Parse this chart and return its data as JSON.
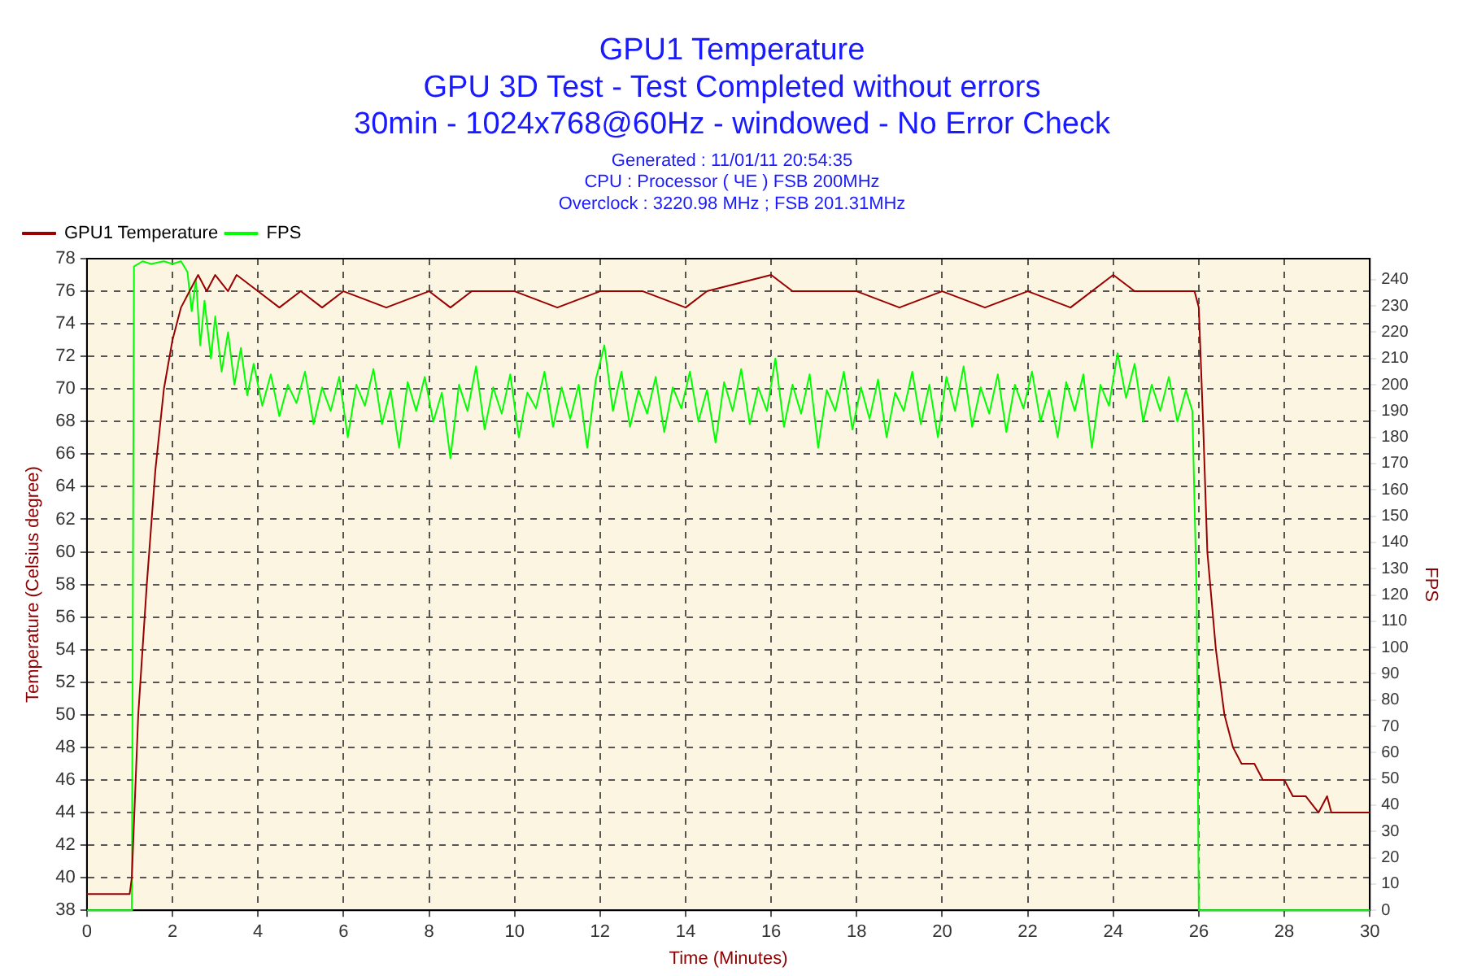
{
  "chart_data": {
    "type": "line",
    "title": "GPU1 Temperature",
    "subtitle": "GPU 3D Test - Test Completed without errors\n30min - 1024x768@60Hz - windowed - No Error Check",
    "annotations": [
      "Generated : 11/01/11 20:54:35",
      "CPU : Processor ( ЧЕ ) FSB 200MHz",
      "Overclock : 3220.98 MHz ; FSB 201.31MHz"
    ],
    "xlabel": "Time (Minutes)",
    "ylabel": "Temperature (Celsius degree)",
    "y2label": "FPS",
    "xlim": [
      0,
      30
    ],
    "xticks": [
      0,
      2,
      4,
      6,
      8,
      10,
      12,
      14,
      16,
      18,
      20,
      22,
      24,
      26,
      28,
      30
    ],
    "ylim": [
      38,
      78
    ],
    "yticks": [
      38,
      40,
      42,
      44,
      46,
      48,
      50,
      52,
      54,
      56,
      58,
      60,
      62,
      64,
      66,
      68,
      70,
      72,
      74,
      76,
      78
    ],
    "y2lim": [
      0,
      248
    ],
    "y2ticks": [
      0,
      10,
      20,
      30,
      40,
      50,
      60,
      70,
      80,
      90,
      100,
      110,
      120,
      130,
      140,
      150,
      160,
      170,
      180,
      190,
      200,
      210,
      220,
      230,
      240
    ],
    "grid": true,
    "legend": "top left",
    "marker": "none",
    "line_style": "solid",
    "series": [
      {
        "name": "FPS",
        "color": "#00ff00",
        "axis": "y2",
        "x": [
          0,
          1.05,
          1.1,
          1.3,
          1.5,
          1.8,
          2.0,
          2.2,
          2.35,
          2.45,
          2.55,
          2.65,
          2.75,
          2.9,
          3.0,
          3.15,
          3.3,
          3.45,
          3.6,
          3.75,
          3.9,
          4.1,
          4.3,
          4.5,
          4.7,
          4.9,
          5.1,
          5.3,
          5.5,
          5.7,
          5.9,
          6.1,
          6.3,
          6.5,
          6.7,
          6.9,
          7.1,
          7.3,
          7.5,
          7.7,
          7.9,
          8.1,
          8.3,
          8.5,
          8.7,
          8.9,
          9.1,
          9.3,
          9.5,
          9.7,
          9.9,
          10.1,
          10.3,
          10.5,
          10.7,
          10.9,
          11.1,
          11.3,
          11.5,
          11.7,
          11.9,
          12.1,
          12.3,
          12.5,
          12.7,
          12.9,
          13.1,
          13.3,
          13.5,
          13.7,
          13.9,
          14.1,
          14.3,
          14.5,
          14.7,
          14.9,
          15.1,
          15.3,
          15.5,
          15.7,
          15.9,
          16.1,
          16.3,
          16.5,
          16.7,
          16.9,
          17.1,
          17.3,
          17.5,
          17.7,
          17.9,
          18.1,
          18.3,
          18.5,
          18.7,
          18.9,
          19.1,
          19.3,
          19.5,
          19.7,
          19.9,
          20.1,
          20.3,
          20.5,
          20.7,
          20.9,
          21.1,
          21.3,
          21.5,
          21.7,
          21.9,
          22.1,
          22.3,
          22.5,
          22.7,
          22.9,
          23.1,
          23.3,
          23.5,
          23.7,
          23.9,
          24.1,
          24.3,
          24.5,
          24.7,
          24.9,
          25.1,
          25.3,
          25.5,
          25.7,
          25.85,
          25.95,
          26.0,
          30
        ],
        "values": [
          0,
          0,
          245,
          247,
          246,
          247,
          246,
          247,
          243,
          228,
          240,
          215,
          232,
          210,
          226,
          205,
          220,
          200,
          214,
          196,
          208,
          192,
          204,
          188,
          200,
          193,
          205,
          185,
          199,
          190,
          203,
          180,
          200,
          192,
          206,
          185,
          198,
          176,
          201,
          190,
          203,
          186,
          197,
          172,
          200,
          190,
          207,
          183,
          199,
          189,
          204,
          180,
          197,
          191,
          205,
          184,
          199,
          187,
          200,
          176,
          202,
          215,
          190,
          205,
          184,
          198,
          189,
          203,
          182,
          199,
          191,
          205,
          186,
          198,
          178,
          201,
          190,
          206,
          185,
          199,
          190,
          210,
          184,
          200,
          189,
          204,
          176,
          198,
          190,
          205,
          183,
          199,
          187,
          202,
          180,
          197,
          190,
          205,
          185,
          200,
          180,
          203,
          190,
          207,
          184,
          199,
          189,
          204,
          182,
          200,
          191,
          205,
          186,
          198,
          180,
          201,
          190,
          204,
          176,
          200,
          192,
          212,
          195,
          208,
          186,
          200,
          190,
          203,
          186,
          198,
          190,
          120,
          0,
          0
        ]
      },
      {
        "name": "GPU1 Temperature",
        "color": "#990000",
        "x": [
          0,
          1.0,
          1.05,
          1.2,
          1.4,
          1.6,
          1.8,
          2.0,
          2.2,
          2.4,
          2.6,
          2.8,
          3.0,
          3.3,
          3.5,
          4.0,
          4.5,
          5,
          5.5,
          6,
          7,
          8,
          8.5,
          9,
          10,
          11,
          12,
          13,
          14,
          14.5,
          16,
          16.5,
          18,
          19,
          20,
          21,
          22,
          23,
          24,
          24.5,
          25,
          25.9,
          26,
          26.1,
          26.2,
          26.4,
          26.6,
          26.8,
          27,
          27.3,
          27.5,
          28,
          28.2,
          28.5,
          28.8,
          29,
          29.1,
          30
        ],
        "values": [
          39,
          39,
          40,
          50,
          58,
          65,
          70,
          73,
          75,
          76,
          77,
          76,
          77,
          76,
          77,
          76,
          75,
          76,
          75,
          76,
          75,
          76,
          75,
          76,
          76,
          75,
          76,
          76,
          75,
          76,
          77,
          76,
          76,
          75,
          76,
          75,
          76,
          75,
          77,
          76,
          76,
          76,
          75,
          68,
          60,
          54,
          50,
          48,
          47,
          47,
          46,
          46,
          45,
          45,
          44,
          45,
          44,
          44
        ]
      }
    ]
  }
}
